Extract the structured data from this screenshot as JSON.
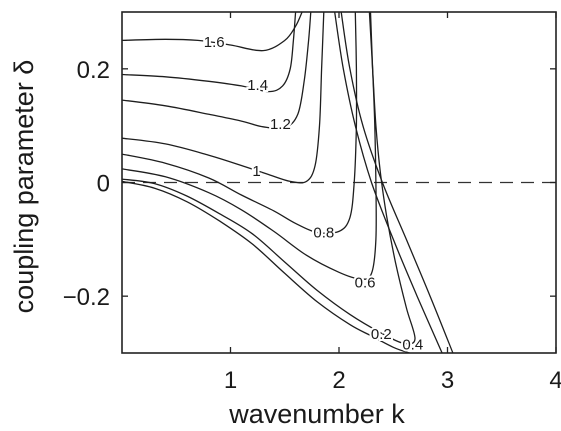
{
  "chart_data": {
    "type": "contour",
    "xlabel": "wavenumber k",
    "ylabel": "coupling parameter  δ",
    "xlim": [
      0,
      4
    ],
    "ylim": [
      -0.3,
      0.3
    ],
    "x_ticks": [
      "1",
      "2",
      "3",
      "4"
    ],
    "y_ticks": [
      "0.2",
      "0",
      "−0.2"
    ],
    "reference_line": {
      "y": 0,
      "style": "dashed"
    },
    "contour_labels": [
      {
        "text": "1.6",
        "k": 0.85,
        "d": 0.245
      },
      {
        "text": "1.4",
        "k": 1.25,
        "d": 0.17
      },
      {
        "text": "1.2",
        "k": 1.46,
        "d": 0.101
      },
      {
        "text": "1",
        "k": 1.24,
        "d": 0.018
      },
      {
        "text": "0.8",
        "k": 1.86,
        "d": -0.09
      },
      {
        "text": "0.6",
        "k": 2.24,
        "d": -0.178
      },
      {
        "text": "0.4",
        "k": 2.68,
        "d": -0.287
      },
      {
        "text": "0.2",
        "k": 2.39,
        "d": -0.268
      }
    ],
    "contours": [
      {
        "level": "1.6",
        "points": [
          [
            0.0,
            0.25
          ],
          [
            0.4,
            0.252
          ],
          [
            0.7,
            0.25
          ],
          [
            1.0,
            0.242
          ],
          [
            1.3,
            0.232
          ],
          [
            1.5,
            0.25
          ],
          [
            1.6,
            0.275
          ],
          [
            1.66,
            0.3
          ]
        ]
      },
      {
        "level": "1.4",
        "points": [
          [
            0.0,
            0.19
          ],
          [
            0.4,
            0.186
          ],
          [
            0.8,
            0.178
          ],
          [
            1.1,
            0.17
          ],
          [
            1.35,
            0.16
          ],
          [
            1.48,
            0.17
          ],
          [
            1.55,
            0.2
          ],
          [
            1.58,
            0.25
          ],
          [
            1.6,
            0.3
          ]
        ]
      },
      {
        "level": "1.2",
        "points": [
          [
            0.0,
            0.145
          ],
          [
            0.4,
            0.135
          ],
          [
            0.8,
            0.12
          ],
          [
            1.1,
            0.108
          ],
          [
            1.3,
            0.098
          ],
          [
            1.5,
            0.096
          ],
          [
            1.62,
            0.12
          ],
          [
            1.68,
            0.18
          ],
          [
            1.72,
            0.25
          ],
          [
            1.74,
            0.3
          ]
        ]
      },
      {
        "level": "1",
        "points": [
          [
            0.0,
            0.078
          ],
          [
            0.4,
            0.068
          ],
          [
            0.8,
            0.048
          ],
          [
            1.1,
            0.03
          ],
          [
            1.35,
            0.014
          ],
          [
            1.55,
            0.002
          ],
          [
            1.7,
            0.002
          ],
          [
            1.78,
            0.03
          ],
          [
            1.82,
            0.1
          ],
          [
            1.84,
            0.2
          ],
          [
            1.86,
            0.3
          ]
        ]
      },
      {
        "level": "0.8",
        "points": [
          [
            0.0,
            0.05
          ],
          [
            0.4,
            0.034
          ],
          [
            0.8,
            0.008
          ],
          [
            1.1,
            -0.022
          ],
          [
            1.4,
            -0.05
          ],
          [
            1.6,
            -0.072
          ],
          [
            1.8,
            -0.088
          ],
          [
            2.0,
            -0.086
          ],
          [
            2.1,
            -0.062
          ],
          [
            2.14,
            0.0
          ],
          [
            2.16,
            0.1
          ],
          [
            2.16,
            0.2
          ],
          [
            2.15,
            0.3
          ]
        ]
      },
      {
        "level": "0.6",
        "points": [
          [
            0.0,
            0.024
          ],
          [
            0.4,
            0.01
          ],
          [
            0.8,
            -0.018
          ],
          [
            1.1,
            -0.048
          ],
          [
            1.4,
            -0.086
          ],
          [
            1.7,
            -0.128
          ],
          [
            2.0,
            -0.158
          ],
          [
            2.2,
            -0.17
          ],
          [
            2.3,
            -0.16
          ],
          [
            2.34,
            -0.1
          ],
          [
            2.34,
            0.0
          ],
          [
            2.33,
            0.1
          ],
          [
            2.31,
            0.2
          ],
          [
            2.29,
            0.3
          ]
        ]
      },
      {
        "level": "0.4",
        "points": [
          [
            0.0,
            0.006
          ],
          [
            0.3,
            -0.002
          ],
          [
            0.6,
            -0.024
          ],
          [
            0.9,
            -0.055
          ],
          [
            1.2,
            -0.09
          ],
          [
            1.5,
            -0.14
          ],
          [
            1.8,
            -0.19
          ],
          [
            2.1,
            -0.232
          ],
          [
            2.4,
            -0.266
          ],
          [
            2.6,
            -0.283
          ],
          [
            2.7,
            -0.275
          ],
          [
            2.62,
            -0.22
          ],
          [
            2.52,
            -0.14
          ],
          [
            2.44,
            -0.06
          ],
          [
            2.38,
            0.02
          ],
          [
            2.34,
            0.1
          ],
          [
            2.31,
            0.2
          ],
          [
            2.28,
            0.3
          ]
        ]
      },
      {
        "level": "0.2",
        "points": [
          [
            0.0,
            0.002
          ],
          [
            0.3,
            -0.01
          ],
          [
            0.6,
            -0.034
          ],
          [
            0.9,
            -0.068
          ],
          [
            1.2,
            -0.108
          ],
          [
            1.5,
            -0.16
          ],
          [
            1.8,
            -0.21
          ],
          [
            2.1,
            -0.25
          ],
          [
            2.3,
            -0.27
          ],
          [
            2.5,
            -0.29
          ],
          [
            2.65,
            -0.3
          ]
        ]
      },
      {
        "level": "outer-a",
        "points": [
          [
            2.02,
            0.3
          ],
          [
            2.1,
            0.2
          ],
          [
            2.22,
            0.1
          ],
          [
            2.4,
            0.0
          ],
          [
            2.62,
            -0.1
          ],
          [
            2.84,
            -0.2
          ],
          [
            3.05,
            -0.3
          ]
        ]
      },
      {
        "level": "outer-b",
        "points": [
          [
            1.96,
            0.3
          ],
          [
            2.04,
            0.2
          ],
          [
            2.15,
            0.1
          ],
          [
            2.3,
            0.0
          ],
          [
            2.5,
            -0.1
          ],
          [
            2.72,
            -0.2
          ],
          [
            2.95,
            -0.3
          ]
        ]
      }
    ]
  }
}
